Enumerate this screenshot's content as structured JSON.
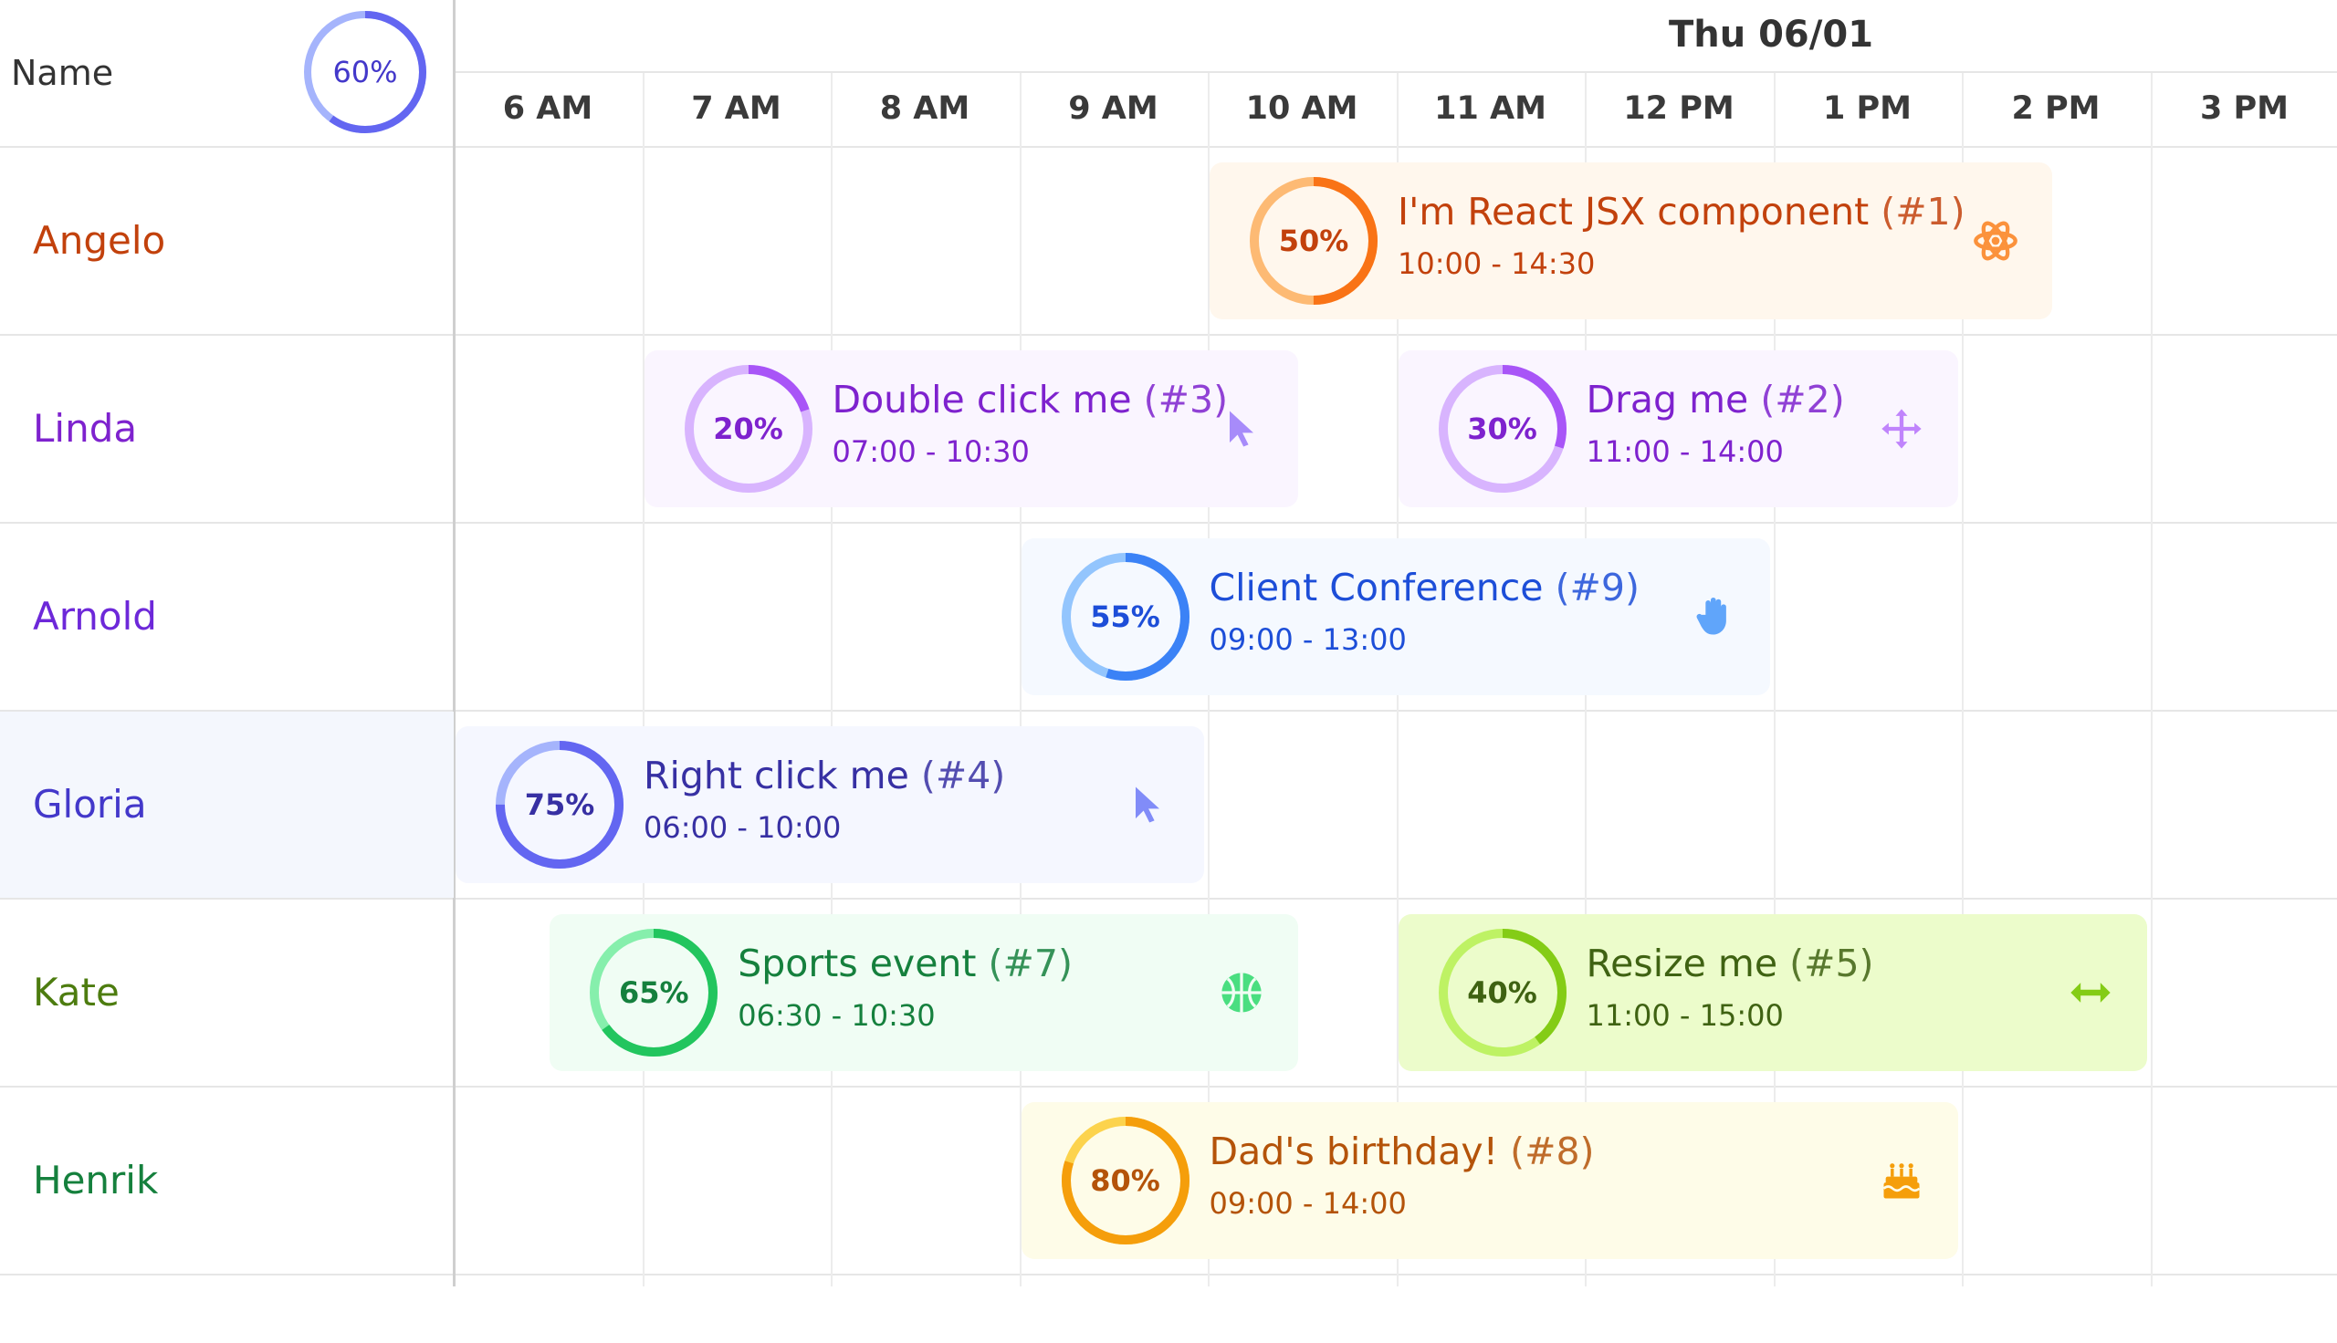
{
  "header": {
    "name_label": "Name",
    "overall_progress": 60,
    "overall_progress_label": "60%",
    "date": "Thu 06/01",
    "times": [
      "6 AM",
      "7 AM",
      "8 AM",
      "9 AM",
      "10 AM",
      "11 AM",
      "12 PM",
      "1 PM",
      "2 PM",
      "3 PM"
    ]
  },
  "resources": [
    {
      "name": "Angelo",
      "color": "#c2410c"
    },
    {
      "name": "Linda",
      "color": "#7e22ce"
    },
    {
      "name": "Arnold",
      "color": "#6d28d9"
    },
    {
      "name": "Gloria",
      "color": "#4338ca"
    },
    {
      "name": "Kate",
      "color": "#4d7c0f"
    },
    {
      "name": "Henrik",
      "color": "#15803d"
    }
  ],
  "events": [
    {
      "id": "#1",
      "title": "I'm React JSX component",
      "id_label": "(#1)",
      "time": "10:00 - 14:30",
      "progress": 50,
      "progress_label": "50%",
      "icon": "gear-icon",
      "resource": 0,
      "start": 10,
      "end": 14.5,
      "bg": "#fff7ed",
      "fg": "#c2410c",
      "ring": "#f97316",
      "ring_light": "#fdba74",
      "icon_color": "#fb923c"
    },
    {
      "id": "#3",
      "title": "Double click me",
      "id_label": "(#3)",
      "time": "07:00 - 10:30",
      "progress": 20,
      "progress_label": "20%",
      "icon": "cursor-icon",
      "resource": 1,
      "start": 7,
      "end": 10.5,
      "bg": "#faf5ff",
      "fg": "#7e22ce",
      "ring": "#a855f7",
      "ring_light": "#d8b4fe",
      "icon_color": "#a78bfa"
    },
    {
      "id": "#2",
      "title": "Drag me",
      "id_label": "(#2)",
      "time": "11:00 - 14:00",
      "progress": 30,
      "progress_label": "30%",
      "icon": "move-icon",
      "resource": 1,
      "start": 11,
      "end": 14,
      "bg": "#faf5ff",
      "fg": "#7e22ce",
      "ring": "#a855f7",
      "ring_light": "#d8b4fe",
      "icon_color": "#c084fc"
    },
    {
      "id": "#9",
      "title": "Client Conference",
      "id_label": "(#9)",
      "time": "09:00 - 13:00",
      "progress": 55,
      "progress_label": "55%",
      "icon": "hand-icon",
      "resource": 2,
      "start": 9,
      "end": 13,
      "bg": "#f5f9ff",
      "fg": "#1d4ed8",
      "ring": "#3b82f6",
      "ring_light": "#93c5fd",
      "icon_color": "#60a5fa"
    },
    {
      "id": "#4",
      "title": "Right click me",
      "id_label": "(#4)",
      "time": "06:00 - 10:00",
      "progress": 75,
      "progress_label": "75%",
      "icon": "cursor-icon",
      "resource": 3,
      "start": 6,
      "end": 10,
      "bg": "#f5f7ff",
      "fg": "#3730a3",
      "ring": "#6366f1",
      "ring_light": "#a5b4fc",
      "icon_color": "#818cf8"
    },
    {
      "id": "#7",
      "title": "Sports event",
      "id_label": "(#7)",
      "time": "06:30 - 10:30",
      "progress": 65,
      "progress_label": "65%",
      "icon": "basketball-icon",
      "resource": 4,
      "start": 6.5,
      "end": 10.5,
      "bg": "#f0fdf4",
      "fg": "#15803d",
      "ring": "#22c55e",
      "ring_light": "#86efac",
      "icon_color": "#4ade80"
    },
    {
      "id": "#5",
      "title": "Resize me",
      "id_label": "(#5)",
      "time": "11:00 - 15:00",
      "progress": 40,
      "progress_label": "40%",
      "icon": "resize-icon",
      "resource": 4,
      "start": 11,
      "end": 15,
      "bg": "#ecfccb",
      "fg": "#3f6212",
      "ring": "#84cc16",
      "ring_light": "#bef264",
      "icon_color": "#84cc16"
    },
    {
      "id": "#8",
      "title": "Dad's birthday!",
      "id_label": "(#8)",
      "time": "09:00 - 14:00",
      "progress": 80,
      "progress_label": "80%",
      "icon": "cake-icon",
      "resource": 5,
      "start": 9,
      "end": 14,
      "bg": "#fefce8",
      "fg": "#b45309",
      "ring": "#f59e0b",
      "ring_light": "#fcd34d",
      "icon_color": "#f59e0b"
    }
  ]
}
